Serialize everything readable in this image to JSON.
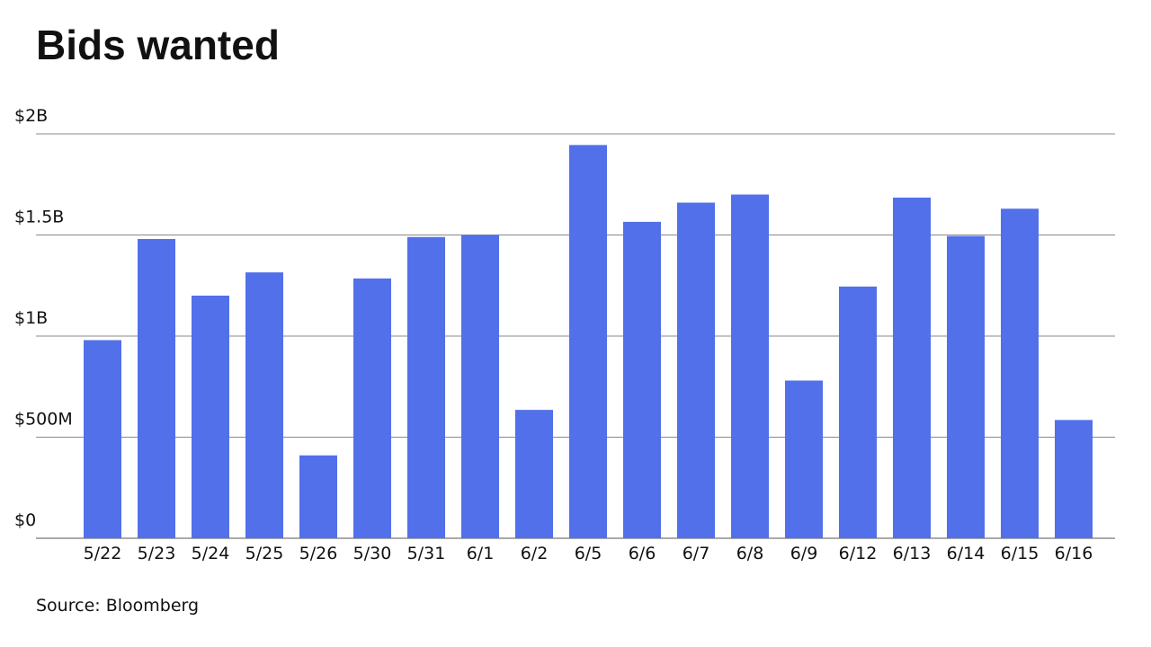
{
  "chart_data": {
    "type": "bar",
    "title": "Bids wanted",
    "source": "Source: Bloomberg",
    "categories": [
      "5/22",
      "5/23",
      "5/24",
      "5/25",
      "5/26",
      "5/30",
      "5/31",
      "6/1",
      "6/2",
      "6/5",
      "6/6",
      "6/7",
      "6/8",
      "6/9",
      "6/12",
      "6/13",
      "6/14",
      "6/15",
      "6/16"
    ],
    "values": [
      980,
      1480,
      1200,
      1315,
      410,
      1285,
      1490,
      1500,
      635,
      1945,
      1565,
      1660,
      1700,
      780,
      1245,
      1685,
      1495,
      1630,
      585
    ],
    "color": "#5170ea",
    "ylim": [
      0,
      2000
    ],
    "yticks": [
      {
        "value": 0,
        "label": "$0"
      },
      {
        "value": 500,
        "label": "$500M"
      },
      {
        "value": 1000,
        "label": "$1B"
      },
      {
        "value": 1500,
        "label": "$1.5B"
      },
      {
        "value": 2000,
        "label": "$2B"
      }
    ],
    "grid": true
  }
}
